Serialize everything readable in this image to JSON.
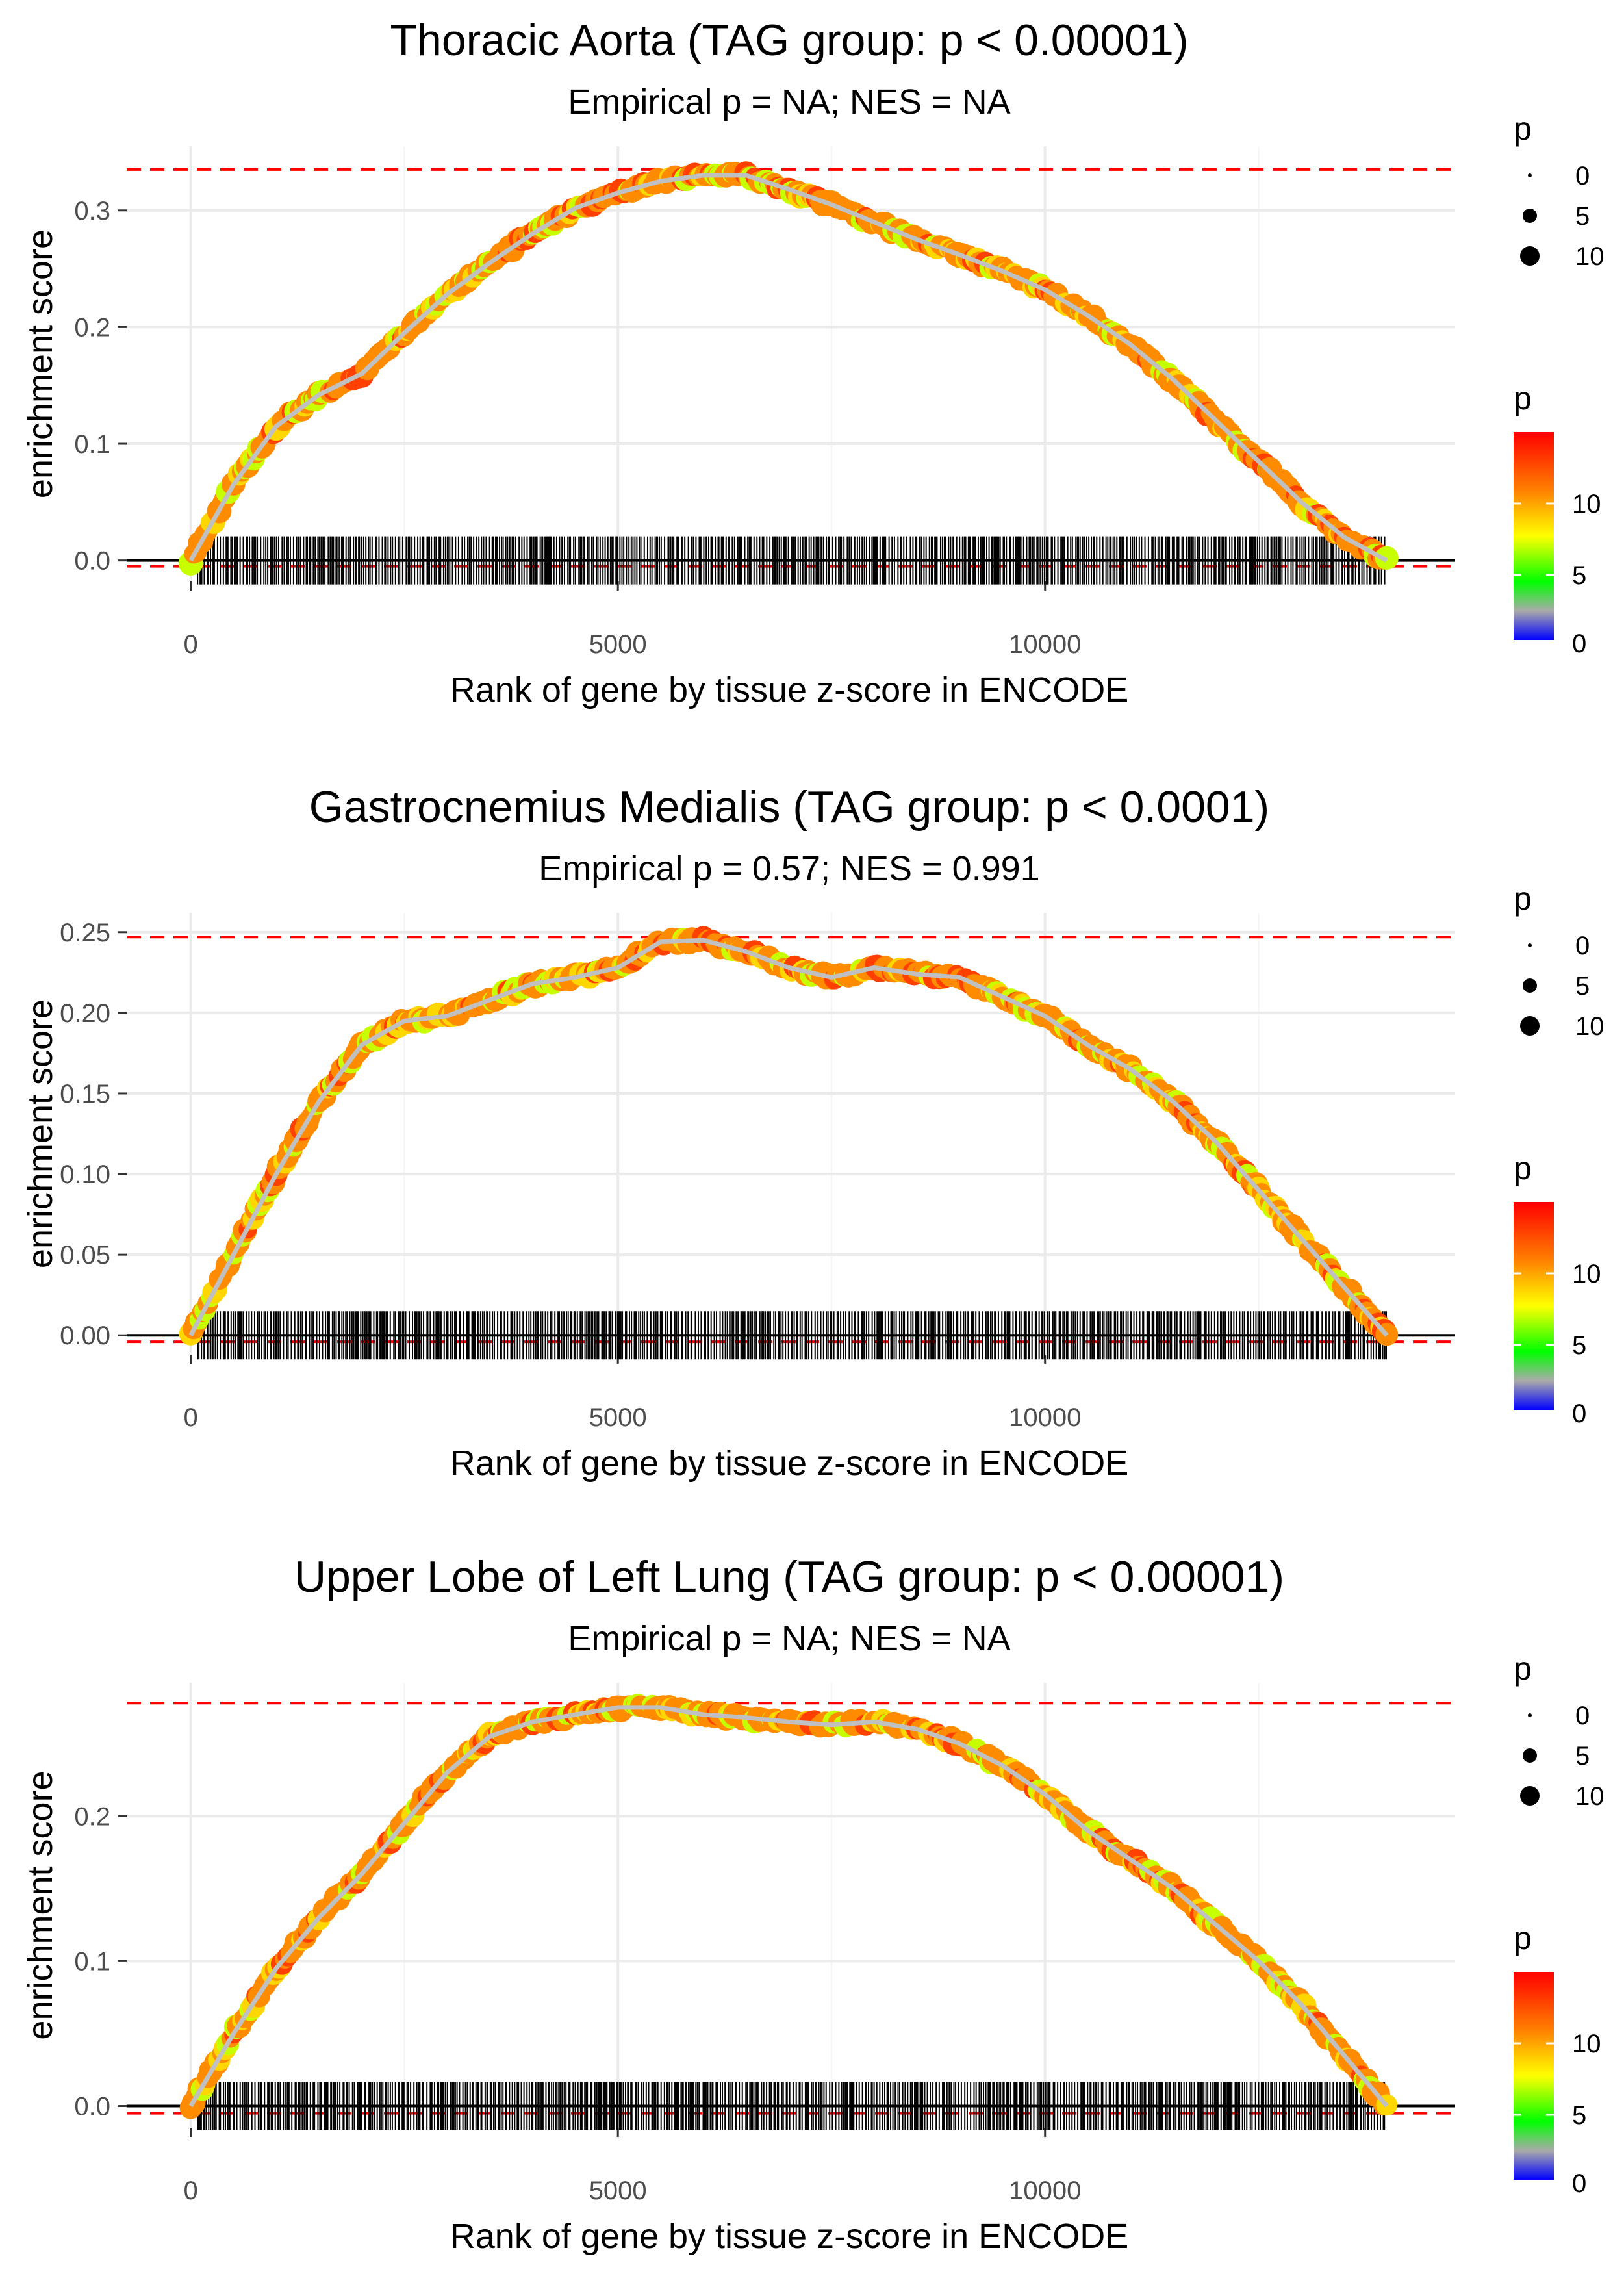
{
  "chart_data": [
    {
      "type": "line",
      "title": "Thoracic Aorta (TAG group: p < 0.00001)",
      "subtitle": "Empirical p = NA; NES = NA",
      "xlabel": "Rank of gene by tissue z-score in ENCODE",
      "ylabel": "enrichment score",
      "xlim": [
        -750,
        14800
      ],
      "ylim": [
        -0.018,
        0.355
      ],
      "x_ticks": [
        0,
        5000,
        10000
      ],
      "x_tick_labels": [
        "0",
        "5000",
        "10000"
      ],
      "y_ticks": [
        0.0,
        0.1,
        0.2,
        0.3
      ],
      "y_tick_labels": [
        "0.0",
        "0.1",
        "0.2",
        "0.3"
      ],
      "max_line": 0.335,
      "min_line": -0.005,
      "series": [
        {
          "name": "running enrichment score",
          "x": [
            0,
            500,
            1000,
            1500,
            2000,
            2500,
            3000,
            3500,
            4000,
            4500,
            5000,
            5500,
            6000,
            6500,
            7000,
            7500,
            8000,
            8500,
            9000,
            9500,
            10000,
            10500,
            11000,
            11500,
            12000,
            12500,
            13000,
            13500,
            14000
          ],
          "values": [
            0.0,
            0.065,
            0.115,
            0.142,
            0.16,
            0.195,
            0.228,
            0.255,
            0.28,
            0.302,
            0.315,
            0.325,
            0.33,
            0.33,
            0.318,
            0.305,
            0.29,
            0.275,
            0.262,
            0.248,
            0.232,
            0.21,
            0.185,
            0.155,
            0.12,
            0.085,
            0.05,
            0.02,
            0.0
          ]
        }
      ],
      "legend": [
        {
          "title": "p",
          "kind": "size",
          "labels": [
            "0",
            "5",
            "10"
          ]
        },
        {
          "title": "p",
          "kind": "colorbar",
          "labels": [
            "10",
            "5",
            "0"
          ]
        }
      ]
    },
    {
      "type": "line",
      "title": "Gastrocnemius Medialis (TAG group: p < 0.0001)",
      "subtitle": "Empirical p = 0.57; NES = 0.991",
      "xlabel": "Rank of gene by tissue z-score in ENCODE",
      "ylabel": "enrichment score",
      "xlim": [
        -750,
        14800
      ],
      "ylim": [
        -0.012,
        0.262
      ],
      "x_ticks": [
        0,
        5000,
        10000
      ],
      "x_tick_labels": [
        "0",
        "5000",
        "10000"
      ],
      "y_ticks": [
        0.0,
        0.05,
        0.1,
        0.15,
        0.2,
        0.25
      ],
      "y_tick_labels": [
        "0.00",
        "0.05",
        "0.10",
        "0.15",
        "0.20",
        "0.25"
      ],
      "max_line": 0.247,
      "min_line": -0.004,
      "series": [
        {
          "name": "running enrichment score",
          "x": [
            0,
            500,
            1000,
            1500,
            2000,
            2500,
            3000,
            3500,
            4000,
            4500,
            5000,
            5500,
            6000,
            6500,
            7000,
            7500,
            8000,
            8500,
            9000,
            9500,
            10000,
            10500,
            11000,
            11500,
            12000,
            12500,
            13000,
            13500,
            14000
          ],
          "values": [
            0.0,
            0.05,
            0.1,
            0.145,
            0.18,
            0.195,
            0.198,
            0.208,
            0.218,
            0.222,
            0.228,
            0.244,
            0.245,
            0.238,
            0.228,
            0.222,
            0.228,
            0.224,
            0.222,
            0.21,
            0.198,
            0.18,
            0.165,
            0.145,
            0.12,
            0.09,
            0.06,
            0.03,
            0.0
          ]
        }
      ],
      "legend": [
        {
          "title": "p",
          "kind": "size",
          "labels": [
            "0",
            "5",
            "10"
          ]
        },
        {
          "title": "p",
          "kind": "colorbar",
          "labels": [
            "10",
            "5",
            "0"
          ]
        }
      ]
    },
    {
      "type": "line",
      "title": "Upper Lobe of Left Lung (TAG group: p < 0.00001)",
      "subtitle": "Empirical p = NA; NES = NA",
      "xlabel": "Rank of gene by tissue z-score in ENCODE",
      "ylabel": "enrichment score",
      "xlim": [
        -750,
        14800
      ],
      "ylim": [
        -0.015,
        0.292
      ],
      "x_ticks": [
        0,
        5000,
        10000
      ],
      "x_tick_labels": [
        "0",
        "5000",
        "10000"
      ],
      "y_ticks": [
        0.0,
        0.1,
        0.2
      ],
      "y_tick_labels": [
        "0.0",
        "0.1",
        "0.2"
      ],
      "max_line": 0.278,
      "min_line": -0.005,
      "series": [
        {
          "name": "running enrichment score",
          "x": [
            0,
            500,
            1000,
            1500,
            2000,
            2500,
            3000,
            3500,
            4000,
            4500,
            5000,
            5500,
            6000,
            6500,
            7000,
            7500,
            8000,
            8500,
            9000,
            9500,
            10000,
            10500,
            11000,
            11500,
            12000,
            12500,
            13000,
            13500,
            14000
          ],
          "values": [
            0.0,
            0.05,
            0.095,
            0.13,
            0.16,
            0.195,
            0.23,
            0.255,
            0.265,
            0.27,
            0.275,
            0.275,
            0.27,
            0.268,
            0.265,
            0.263,
            0.265,
            0.26,
            0.25,
            0.235,
            0.215,
            0.19,
            0.17,
            0.15,
            0.125,
            0.1,
            0.07,
            0.035,
            0.0
          ]
        }
      ],
      "legend": [
        {
          "title": "p",
          "kind": "size",
          "labels": [
            "0",
            "5",
            "10"
          ]
        },
        {
          "title": "p",
          "kind": "colorbar",
          "labels": [
            "10",
            "5",
            "0"
          ]
        }
      ]
    }
  ],
  "colors": {
    "threshold_line": "#ff0000",
    "zero_line": "#000000",
    "gridline": "#ebebeb",
    "curve": "#c0c0c0",
    "point_main": "#ff8c00",
    "point_alt1": "#ff4000",
    "point_alt2": "#ffd700",
    "point_alt3": "#c8ff00",
    "colorbar_stops": [
      "#ff0000",
      "#ff8000",
      "#ffff00",
      "#00ff00",
      "#aaaaaa",
      "#0000ff"
    ]
  }
}
